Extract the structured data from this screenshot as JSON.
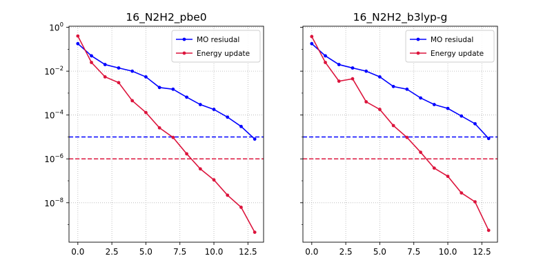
{
  "chart_data": [
    {
      "type": "line",
      "title": "16_N2H2_pbe0",
      "xlabel": "",
      "ylabel": "",
      "y_scale": "log",
      "xlim": [
        -0.65,
        13.65
      ],
      "ylim_log10": [
        -9.8,
        0.05
      ],
      "x_ticks": [
        0.0,
        2.5,
        5.0,
        7.5,
        10.0,
        12.5
      ],
      "x_tick_labels": [
        "0.0",
        "2.5",
        "5.0",
        "7.5",
        "10.0",
        "12.5"
      ],
      "y_ticks_log10": [
        0,
        -2,
        -4,
        -6,
        -8
      ],
      "y_tick_labels": [
        {
          "base": "10",
          "exp": "0"
        },
        {
          "base": "10",
          "exp": "−2"
        },
        {
          "base": "10",
          "exp": "−4"
        },
        {
          "base": "10",
          "exp": "−6"
        },
        {
          "base": "10",
          "exp": "−8"
        }
      ],
      "grid": true,
      "legend_position": "top-right",
      "series": [
        {
          "name": "MO resiudal",
          "color": "#0000ff",
          "x": [
            0,
            1,
            2,
            3,
            4,
            5,
            6,
            7,
            8,
            9,
            10,
            11,
            12,
            13
          ],
          "y": [
            0.18,
            0.05,
            0.02,
            0.014,
            0.01,
            0.0055,
            0.0018,
            0.0015,
            0.00065,
            0.0003,
            0.00018,
            8e-05,
            3e-05,
            8e-06
          ]
        },
        {
          "name": "Energy update",
          "color": "#dc143c",
          "x": [
            0,
            1,
            2,
            3,
            4,
            5,
            6,
            7,
            8,
            9,
            10,
            11,
            12,
            13
          ],
          "y": [
            0.4,
            0.025,
            0.0055,
            0.003,
            0.00045,
            0.00013,
            2.6e-05,
            9.5e-06,
            1.7e-06,
            3.5e-07,
            1.1e-07,
            2.2e-08,
            6.2e-09,
            4.5e-10
          ]
        }
      ],
      "reference_lines": [
        {
          "y": 1e-05,
          "color": "#0000ff",
          "style": "dashed"
        },
        {
          "y": 1e-06,
          "color": "#dc143c",
          "style": "dashed"
        }
      ]
    },
    {
      "type": "line",
      "title": "16_N2H2_b3lyp-g",
      "xlabel": "",
      "ylabel": "",
      "y_scale": "log",
      "xlim": [
        -0.65,
        13.65
      ],
      "ylim_log10": [
        -9.8,
        0.05
      ],
      "x_ticks": [
        0.0,
        2.5,
        5.0,
        7.5,
        10.0,
        12.5
      ],
      "x_tick_labels": [
        "0.0",
        "2.5",
        "5.0",
        "7.5",
        "10.0",
        "12.5"
      ],
      "y_ticks_log10": [
        0,
        -2,
        -4,
        -6,
        -8
      ],
      "y_tick_labels": [],
      "grid": true,
      "legend_position": "top-right",
      "series": [
        {
          "name": "MO resiudal",
          "color": "#0000ff",
          "x": [
            0,
            1,
            2,
            3,
            4,
            5,
            6,
            7,
            8,
            9,
            10,
            11,
            12,
            13
          ],
          "y": [
            0.18,
            0.05,
            0.02,
            0.014,
            0.01,
            0.0055,
            0.002,
            0.0015,
            0.0006,
            0.0003,
            0.0002,
            9e-05,
            4e-05,
            8.5e-06
          ]
        },
        {
          "name": "Energy update",
          "color": "#dc143c",
          "x": [
            0,
            1,
            2,
            3,
            4,
            5,
            6,
            7,
            8,
            9,
            10,
            11,
            12,
            13
          ],
          "y": [
            0.38,
            0.025,
            0.0035,
            0.0045,
            0.0004,
            0.00018,
            3.3e-05,
            9.5e-06,
            2e-06,
            3.8e-07,
            1.6e-07,
            2.8e-08,
            1.1e-08,
            5.5e-10
          ]
        }
      ],
      "reference_lines": [
        {
          "y": 1e-05,
          "color": "#0000ff",
          "style": "dashed"
        },
        {
          "y": 1e-06,
          "color": "#dc143c",
          "style": "dashed"
        }
      ]
    }
  ]
}
